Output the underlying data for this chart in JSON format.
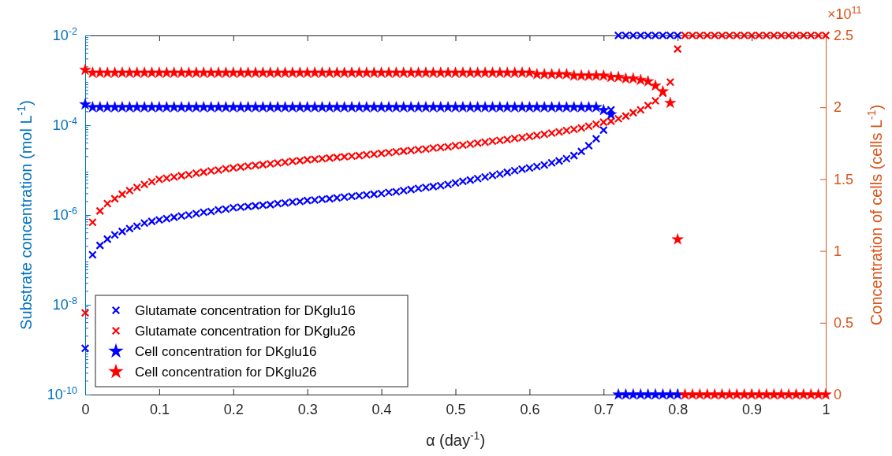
{
  "chart_data": {
    "type": "scatter",
    "xlabel": "α (day$^{-1}$)",
    "ylabel": "Substrate concentration (mol L$^{-1}$)",
    "y2label": "Concentration of cells (cells L$^{-1}$)",
    "annotations": [
      "×10$^{11}$"
    ],
    "xlim": [
      0,
      1
    ],
    "xticks": [
      0,
      0.1,
      0.2,
      0.3,
      0.4,
      0.5,
      0.6,
      0.7,
      0.8,
      0.9,
      1
    ],
    "ylim": [
      1e-10,
      0.01
    ],
    "yticks": [
      {
        "value": 1e-10,
        "label": "10$^{-10}$"
      },
      {
        "value": 1e-08,
        "label": "10$^{-8}$"
      },
      {
        "value": 1e-06,
        "label": "10$^{-6}$"
      },
      {
        "value": 0.0001,
        "label": "10$^{-4}$"
      },
      {
        "value": 0.01,
        "label": "10$^{-2}$"
      }
    ],
    "y2lim": [
      0,
      2.5
    ],
    "y2ticks": [
      0,
      0.5,
      1,
      1.5,
      2,
      2.5
    ],
    "log": "y",
    "grid": false,
    "legend": "bottom left",
    "x": [
      0,
      0.01,
      0.02,
      0.03,
      0.04,
      0.05,
      0.06,
      0.07,
      0.08,
      0.09,
      0.1,
      0.11,
      0.12,
      0.13,
      0.14,
      0.15,
      0.16,
      0.17,
      0.18,
      0.19,
      0.2,
      0.21,
      0.22,
      0.23,
      0.24,
      0.25,
      0.26,
      0.27,
      0.28,
      0.29,
      0.3,
      0.31,
      0.32,
      0.33,
      0.34,
      0.35,
      0.36,
      0.37,
      0.38,
      0.39,
      0.4,
      0.41,
      0.42,
      0.43,
      0.44,
      0.45,
      0.46,
      0.47,
      0.48,
      0.49,
      0.5,
      0.51,
      0.52,
      0.53,
      0.54,
      0.55,
      0.56,
      0.57,
      0.58,
      0.59,
      0.6,
      0.61,
      0.62,
      0.63,
      0.64,
      0.65,
      0.66,
      0.67,
      0.68,
      0.69,
      0.7,
      0.71,
      0.72,
      0.73,
      0.74,
      0.75,
      0.76,
      0.77,
      0.78,
      0.79,
      0.8,
      0.81,
      0.82,
      0.83,
      0.84,
      0.85,
      0.86,
      0.87,
      0.88,
      0.89,
      0.9,
      0.91,
      0.92,
      0.93,
      0.94,
      0.95,
      0.96,
      0.97,
      0.98,
      0.99,
      1
    ],
    "series": [
      {
        "name": "Glutamate concentration for DKglu16",
        "marker": "cross",
        "color": "#0000ff",
        "values": [
          1.07e-09,
          1.3e-07,
          2.1e-07,
          2.9e-07,
          3.6e-07,
          4.3e-07,
          5e-07,
          5.6e-07,
          6.6e-07,
          7.2e-07,
          7.8e-07,
          8.3e-07,
          8.9e-07,
          9.5e-07,
          1e-06,
          1.07e-06,
          1.15e-06,
          1.2e-06,
          1.3e-06,
          1.35e-06,
          1.45e-06,
          1.5e-06,
          1.55e-06,
          1.6e-06,
          1.65e-06,
          1.7e-06,
          1.8e-06,
          1.85e-06,
          1.95e-06,
          2e-06,
          2.1e-06,
          2.15e-06,
          2.25e-06,
          2.3e-06,
          2.4e-06,
          2.5e-06,
          2.6e-06,
          2.7e-06,
          2.8e-06,
          2.9e-06,
          3e-06,
          3.2e-06,
          3.3e-06,
          3.5e-06,
          3.7e-06,
          3.9e-06,
          4.1e-06,
          4.3e-06,
          4.5e-06,
          4.8e-06,
          5.2e-06,
          5.6e-06,
          6e-06,
          6.5e-06,
          7e-06,
          7.6e-06,
          8.2e-06,
          8.9e-06,
          9.7e-06,
          1.05e-05,
          1.12e-05,
          1.2e-05,
          1.3e-05,
          1.45e-05,
          1.6e-05,
          1.8e-05,
          2.1e-05,
          2.6e-05,
          3.5e-05,
          5e-05,
          7.8e-05,
          0.00022,
          0.01,
          0.01,
          0.01,
          0.01,
          0.01,
          0.01,
          0.01,
          0.01,
          0.01,
          null,
          null,
          null,
          null,
          null,
          null,
          null,
          null,
          null,
          null,
          null,
          null,
          null,
          null,
          null,
          null,
          null,
          null,
          null,
          null
        ]
      },
      {
        "name": "Glutamate concentration for DKglu26",
        "marker": "cross",
        "color": "#ff0000",
        "values": [
          6.6e-09,
          6.9e-07,
          1.23e-06,
          1.8e-06,
          2.3e-06,
          2.9e-06,
          3.5e-06,
          4.1e-06,
          4.8e-06,
          5.5e-06,
          6.2e-06,
          6.6e-06,
          7e-06,
          7.5e-06,
          7.9e-06,
          8.5e-06,
          9e-06,
          9.6e-06,
          1e-05,
          1.07e-05,
          1.12e-05,
          1.17e-05,
          1.22e-05,
          1.27e-05,
          1.32e-05,
          1.38e-05,
          1.44e-05,
          1.5e-05,
          1.57e-05,
          1.63e-05,
          1.7e-05,
          1.75e-05,
          1.8e-05,
          1.86e-05,
          1.92e-05,
          1.98e-05,
          2.05e-05,
          2.1e-05,
          2.2e-05,
          2.27e-05,
          2.35e-05,
          2.45e-05,
          2.55e-05,
          2.65e-05,
          2.75e-05,
          2.85e-05,
          2.95e-05,
          3.1e-05,
          3.2e-05,
          3.3e-05,
          3.5e-05,
          3.6e-05,
          3.8e-05,
          4e-05,
          4.2e-05,
          4.4e-05,
          4.6e-05,
          4.8e-05,
          5.1e-05,
          5.3e-05,
          5.6e-05,
          5.9e-05,
          6.3e-05,
          6.7e-05,
          7.1e-05,
          7.6e-05,
          8.1e-05,
          8.7e-05,
          9.5e-05,
          0.000105,
          0.000117,
          0.000123,
          0.00014,
          0.00016,
          0.00019,
          0.00022,
          0.000275,
          0.00035,
          0.00052,
          0.00091,
          0.005,
          0.01,
          0.01,
          0.01,
          0.01,
          0.01,
          0.01,
          0.01,
          0.01,
          0.01,
          0.01,
          0.01,
          0.01,
          0.01,
          0.01,
          0.01,
          0.01,
          0.01,
          0.01,
          0.01,
          0.01
        ]
      },
      {
        "name": "Cell concentration for DKglu16",
        "marker": "star",
        "axis": "y2",
        "color": "#0000ff",
        "values": [
          2.02,
          2.0,
          2.0,
          2.0,
          2.0,
          2.0,
          2.0,
          2.0,
          2.0,
          2.0,
          2.0,
          2.0,
          2.0,
          2.0,
          2.0,
          2.0,
          2.0,
          2.0,
          2.0,
          2.0,
          2.0,
          2.0,
          2.0,
          2.0,
          2.0,
          2.0,
          2.0,
          2.0,
          2.0,
          2.0,
          2.0,
          2.0,
          2.0,
          2.0,
          2.0,
          2.0,
          2.0,
          2.0,
          2.0,
          2.0,
          2.0,
          2.0,
          2.0,
          2.0,
          2.0,
          2.0,
          2.0,
          2.0,
          2.0,
          2.0,
          2.0,
          2.0,
          2.0,
          2.0,
          2.0,
          2.0,
          2.0,
          2.0,
          2.0,
          2.0,
          2.0,
          2.0,
          2.0,
          2.0,
          2.0,
          2.0,
          2.0,
          2.0,
          2.0,
          2.0,
          1.98,
          1.95,
          0,
          0,
          0,
          0,
          0,
          0,
          0,
          0,
          0,
          null,
          null,
          null,
          null,
          null,
          null,
          null,
          null,
          null,
          null,
          null,
          null,
          null,
          null,
          null,
          null,
          null,
          null,
          null,
          null
        ]
      },
      {
        "name": "Cell concentration for DKglu26",
        "marker": "star",
        "axis": "y2",
        "color": "#ff0000",
        "values": [
          2.26,
          2.24,
          2.24,
          2.24,
          2.24,
          2.24,
          2.24,
          2.24,
          2.24,
          2.24,
          2.24,
          2.24,
          2.24,
          2.24,
          2.24,
          2.24,
          2.24,
          2.24,
          2.24,
          2.24,
          2.24,
          2.24,
          2.24,
          2.24,
          2.24,
          2.24,
          2.24,
          2.24,
          2.24,
          2.24,
          2.24,
          2.24,
          2.24,
          2.24,
          2.24,
          2.24,
          2.24,
          2.24,
          2.24,
          2.24,
          2.24,
          2.24,
          2.24,
          2.24,
          2.24,
          2.24,
          2.24,
          2.24,
          2.24,
          2.24,
          2.24,
          2.24,
          2.24,
          2.24,
          2.24,
          2.24,
          2.24,
          2.24,
          2.24,
          2.24,
          2.24,
          2.23,
          2.23,
          2.23,
          2.23,
          2.23,
          2.22,
          2.22,
          2.22,
          2.22,
          2.22,
          2.21,
          2.21,
          2.2,
          2.2,
          2.19,
          2.18,
          2.15,
          2.11,
          2.03,
          1.08,
          0,
          0,
          0,
          0,
          0,
          0,
          0,
          0,
          0,
          0,
          0,
          0,
          0,
          0,
          0,
          0,
          0,
          0,
          0,
          0
        ]
      }
    ]
  }
}
